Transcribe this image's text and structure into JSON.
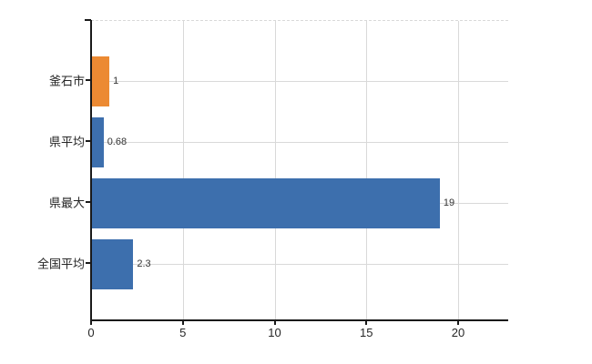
{
  "chart_data": {
    "type": "bar",
    "orientation": "horizontal",
    "title": "",
    "xlabel": "",
    "ylabel": "",
    "categories": [
      "釜石市",
      "県平均",
      "県最大",
      "全国平均"
    ],
    "values": [
      1,
      0.68,
      19,
      2.3
    ],
    "value_labels": [
      "1",
      "0.68",
      "19",
      "2.3"
    ],
    "bar_colors": [
      "#ec8a33",
      "#3d6fad",
      "#3d6fad",
      "#3d6fad"
    ],
    "x_ticks": [
      0,
      5,
      10,
      15,
      20
    ],
    "x_tick_labels": [
      "0",
      "5",
      "10",
      "15",
      "20"
    ],
    "xlim": [
      0,
      22.7
    ],
    "grid": true,
    "legend": "none",
    "colors": {
      "highlight_bar": "#ec8a33",
      "default_bar": "#3d6fad",
      "gridline": "#d9d9d9",
      "axis": "#1a1a1a",
      "text": "#262626",
      "background": "#ffffff"
    }
  }
}
